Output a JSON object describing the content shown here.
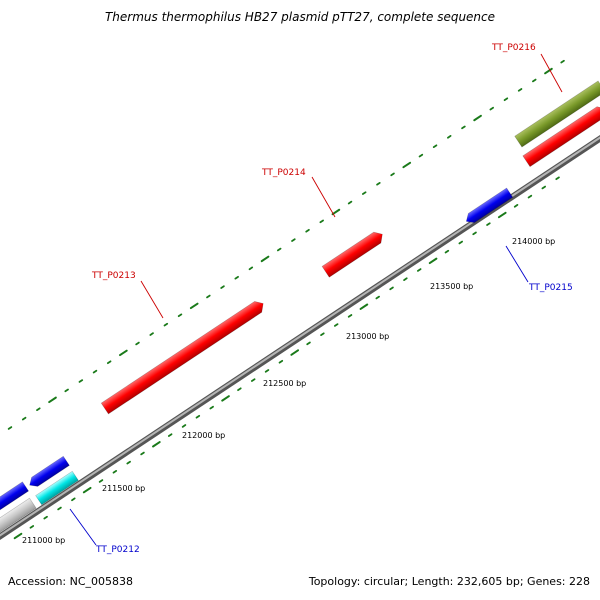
{
  "title": "Thermus thermophilus HB27 plasmid pTT27, complete sequence",
  "footer": {
    "accession": "Accession: NC_005838",
    "summary": "Topology: circular; Length: 232,605 bp; Genes: 228"
  },
  "colors": {
    "backbone": "#8a8a8a",
    "tick": "#1a7a1a",
    "forward_gene": "#ff0000",
    "reverse_gene": "#0000ee",
    "rna_gene": "#00e5e5",
    "other_feature": "#7a9a2a",
    "unknown_feature": "#c8c8c8",
    "forward_label": "#cc0000",
    "reverse_label": "#0000cc"
  },
  "tick_labels": [
    {
      "text": "211000 bp"
    },
    {
      "text": "211500 bp"
    },
    {
      "text": "212000 bp"
    },
    {
      "text": "212500 bp"
    },
    {
      "text": "213000 bp"
    },
    {
      "text": "213500 bp"
    },
    {
      "text": "214000 bp"
    }
  ],
  "gene_labels": [
    {
      "text": "TT_P0212",
      "strand": "reverse"
    },
    {
      "text": "TT_P0213",
      "strand": "forward"
    },
    {
      "text": "TT_P0214",
      "strand": "forward"
    },
    {
      "text": "TT_P0215",
      "strand": "reverse"
    },
    {
      "text": "TT_P0216",
      "strand": "forward"
    }
  ]
}
